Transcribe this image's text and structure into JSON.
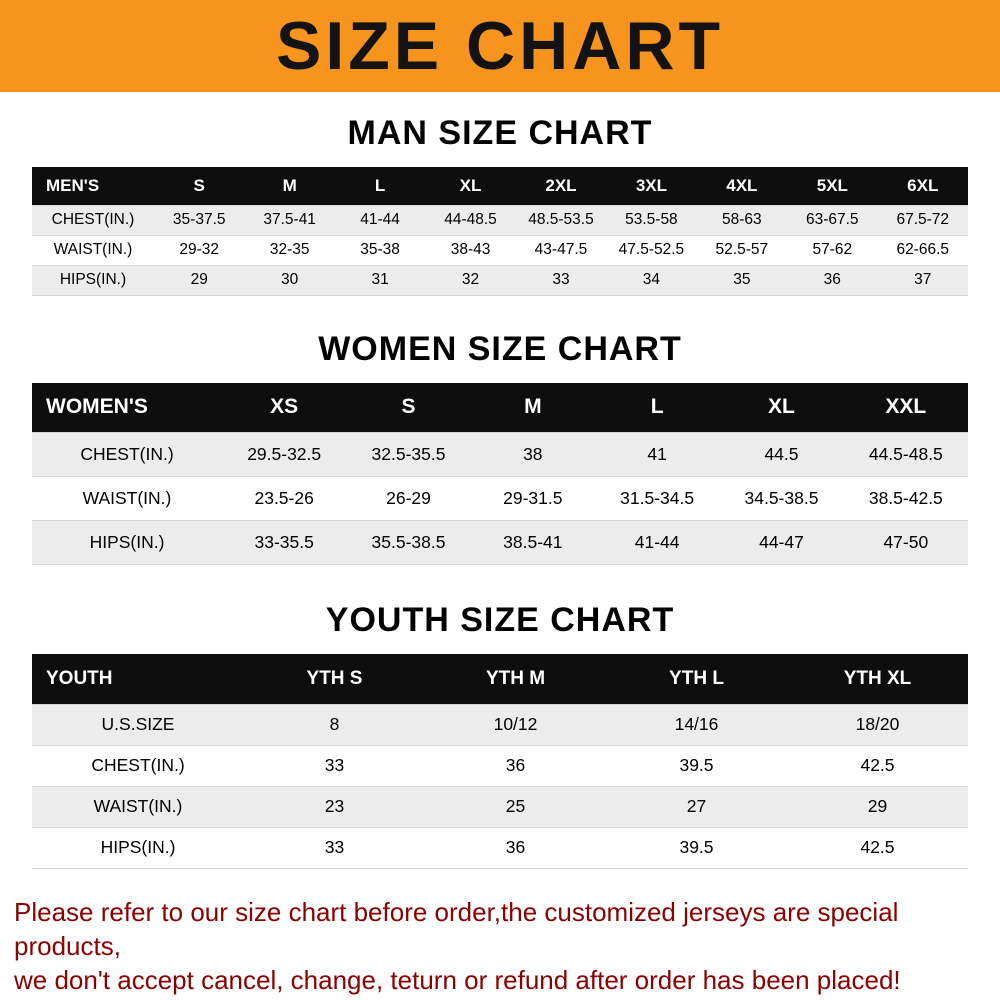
{
  "banner": {
    "title": "SIZE CHART",
    "bg_color": "#F7941D",
    "text_color": "#131313"
  },
  "colors": {
    "table_header_bg": "#0E0E0E",
    "table_header_text": "#FFFFFF",
    "row_alt_bg": "#ECECEC",
    "footer_text": "#8B0000"
  },
  "chart_data": [
    {
      "type": "table",
      "title": "MAN SIZE CHART",
      "corner_label": "MEN'S",
      "columns": [
        "S",
        "M",
        "L",
        "XL",
        "2XL",
        "3XL",
        "4XL",
        "5XL",
        "6XL"
      ],
      "rows": [
        {
          "label": "CHEST(IN.)",
          "values": [
            "35-37.5",
            "37.5-41",
            "41-44",
            "44-48.5",
            "48.5-53.5",
            "53.5-58",
            "58-63",
            "63-67.5",
            "67.5-72"
          ]
        },
        {
          "label": "WAIST(IN.)",
          "values": [
            "29-32",
            "32-35",
            "35-38",
            "38-43",
            "43-47.5",
            "47.5-52.5",
            "52.5-57",
            "57-62",
            "62-66.5"
          ]
        },
        {
          "label": "HIPS(IN.)",
          "values": [
            "29",
            "30",
            "31",
            "32",
            "33",
            "34",
            "35",
            "36",
            "37"
          ]
        }
      ]
    },
    {
      "type": "table",
      "title": "WOMEN SIZE CHART",
      "corner_label": "WOMEN'S",
      "columns": [
        "XS",
        "S",
        "M",
        "L",
        "XL",
        "XXL"
      ],
      "rows": [
        {
          "label": "CHEST(IN.)",
          "values": [
            "29.5-32.5",
            "32.5-35.5",
            "38",
            "41",
            "44.5",
            "44.5-48.5"
          ]
        },
        {
          "label": "WAIST(IN.)",
          "values": [
            "23.5-26",
            "26-29",
            "29-31.5",
            "31.5-34.5",
            "34.5-38.5",
            "38.5-42.5"
          ]
        },
        {
          "label": "HIPS(IN.)",
          "values": [
            "33-35.5",
            "35.5-38.5",
            "38.5-41",
            "41-44",
            "44-47",
            "47-50"
          ]
        }
      ]
    },
    {
      "type": "table",
      "title": "YOUTH SIZE CHART",
      "corner_label": "YOUTH",
      "columns": [
        "YTH S",
        "YTH M",
        "YTH L",
        "YTH XL"
      ],
      "rows": [
        {
          "label": "U.S.SIZE",
          "values": [
            "8",
            "10/12",
            "14/16",
            "18/20"
          ]
        },
        {
          "label": "CHEST(IN.)",
          "values": [
            "33",
            "36",
            "39.5",
            "42.5"
          ]
        },
        {
          "label": "WAIST(IN.)",
          "values": [
            "23",
            "25",
            "27",
            "29"
          ]
        },
        {
          "label": "HIPS(IN.)",
          "values": [
            "33",
            "36",
            "39.5",
            "42.5"
          ]
        }
      ]
    }
  ],
  "footer": {
    "line1": "Please refer to our size chart before order,the customized jerseys are special products,",
    "line2": "we don't accept cancel, change, teturn or refund after order has been placed!"
  }
}
